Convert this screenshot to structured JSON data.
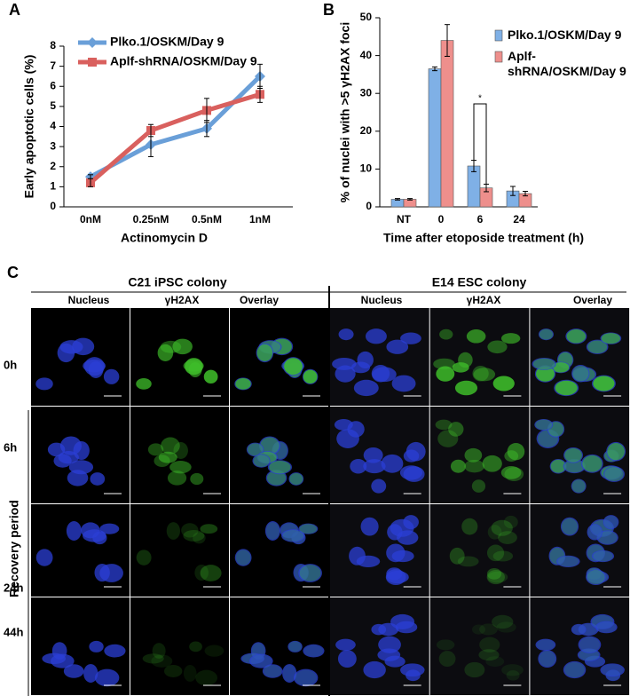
{
  "panels": {
    "a": "A",
    "b": "B",
    "c": "C"
  },
  "chart_data": [
    {
      "type": "line",
      "categories": [
        "0nM",
        "0.25nM",
        "0.5nM",
        "1nM"
      ],
      "series": [
        {
          "name": "Plko.1/OSKM/Day 9",
          "color": "#6a9fd8",
          "marker": "diamond",
          "values": [
            1.5,
            3.1,
            3.9,
            6.5
          ],
          "errors": [
            0.1,
            0.6,
            0.4,
            0.6
          ]
        },
        {
          "name": "Aplf-shRNA/OSKM/Day 9",
          "color": "#d9605e",
          "marker": "square",
          "values": [
            1.2,
            3.8,
            4.8,
            5.6
          ],
          "errors": [
            0.2,
            0.3,
            0.6,
            0.4
          ]
        }
      ],
      "ylim": [
        0,
        8
      ],
      "yticks": [
        0,
        1,
        2,
        3,
        4,
        5,
        6,
        7,
        8
      ],
      "ylabel": "Early apoptotic cells (%)",
      "xlabel": "Actinomycin D",
      "legend": "upper left"
    },
    {
      "type": "bar",
      "categories": [
        "NT",
        "0",
        "6",
        "24"
      ],
      "series": [
        {
          "name": "Plko.1/OSKM/Day 9",
          "color": "#7fb0e6",
          "values": [
            2,
            36.5,
            10.8,
            4.2
          ],
          "errors": [
            0.2,
            0.5,
            1.5,
            1.2
          ]
        },
        {
          "name": "Aplf-shRNA/OSKM/Day 9",
          "color": "#ee8f8c",
          "values": [
            2,
            44,
            5,
            3.5
          ],
          "errors": [
            0.2,
            4.2,
            1,
            0.6
          ]
        }
      ],
      "ylim": [
        0,
        50
      ],
      "yticks": [
        0,
        10,
        20,
        30,
        40,
        50
      ],
      "ylabel": "% of nuclei with >5 γH2AX foci",
      "xlabel": "Time after etoposide treatment (h)",
      "annotations": [
        "*"
      ],
      "legend": "upper right"
    }
  ],
  "microscopy": {
    "colonies": [
      "C21 iPSC colony",
      "E14 ESC colony"
    ],
    "channels": [
      "Nucleus",
      "γH2AX",
      "Overlay"
    ],
    "timepoints": [
      "0h",
      "6h",
      "24h",
      "44h"
    ],
    "recovery_label": "Recovery period"
  }
}
